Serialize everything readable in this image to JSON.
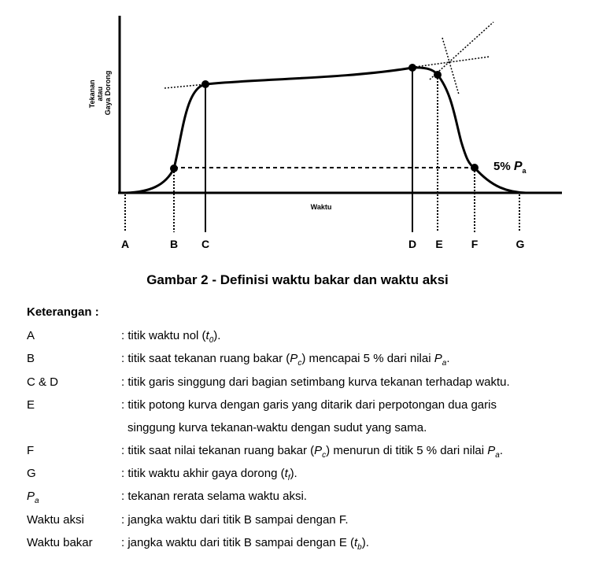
{
  "diagram": {
    "y_axis_label_lines": [
      "Tekanan",
      "atau",
      "Gaya Dorong"
    ],
    "x_axis_label": "Waktu",
    "points": [
      "A",
      "B",
      "C",
      "D",
      "E",
      "F",
      "G"
    ],
    "annotation_text": "5% ",
    "annotation_symbol": "P",
    "annotation_subscript": "a"
  },
  "caption": "Gambar 2 - Definisi waktu bakar dan waktu aksi",
  "legend": {
    "title": "Keterangan :",
    "rows": [
      {
        "term": "A",
        "def": ": titik waktu nol (",
        "sym": "t",
        "sub": "0",
        "tail": ")."
      },
      {
        "term": "B",
        "def": ": titik saat tekanan ruang bakar (",
        "sym": "P",
        "sub": "c",
        "mid": ") mencapai 5 % dari nilai ",
        "sym2": "P",
        "sub2": "a",
        "tail": "."
      },
      {
        "term": "C & D",
        "def": ": titik garis singgung dari bagian setimbang kurva tekanan terhadap waktu."
      },
      {
        "term": "E",
        "def": ": titik potong kurva dengan garis yang ditarik dari perpotongan dua garis",
        "cont": "singgung kurva tekanan-waktu dengan sudut yang sama."
      },
      {
        "term": "F",
        "def": ": titik saat nilai tekanan ruang bakar (",
        "sym": "P",
        "sub": "c",
        "mid": ") menurun di titik 5 % dari nilai ",
        "sym2": "P",
        "sub2": "a",
        "tail": "."
      },
      {
        "term": "G",
        "def": ": titik waktu akhir gaya dorong (",
        "sym": "t",
        "sub": "f",
        "tail": ")."
      },
      {
        "term_sym": "P",
        "term_sub": "a",
        "def": ": tekanan rerata selama waktu aksi."
      },
      {
        "term": "Waktu aksi",
        "def": ": jangka waktu dari titik B sampai dengan F."
      },
      {
        "term": "Waktu bakar",
        "def": ": jangka waktu dari titik B sampai dengan E (",
        "sym": "t",
        "sub": "b",
        "tail": ")."
      }
    ]
  }
}
